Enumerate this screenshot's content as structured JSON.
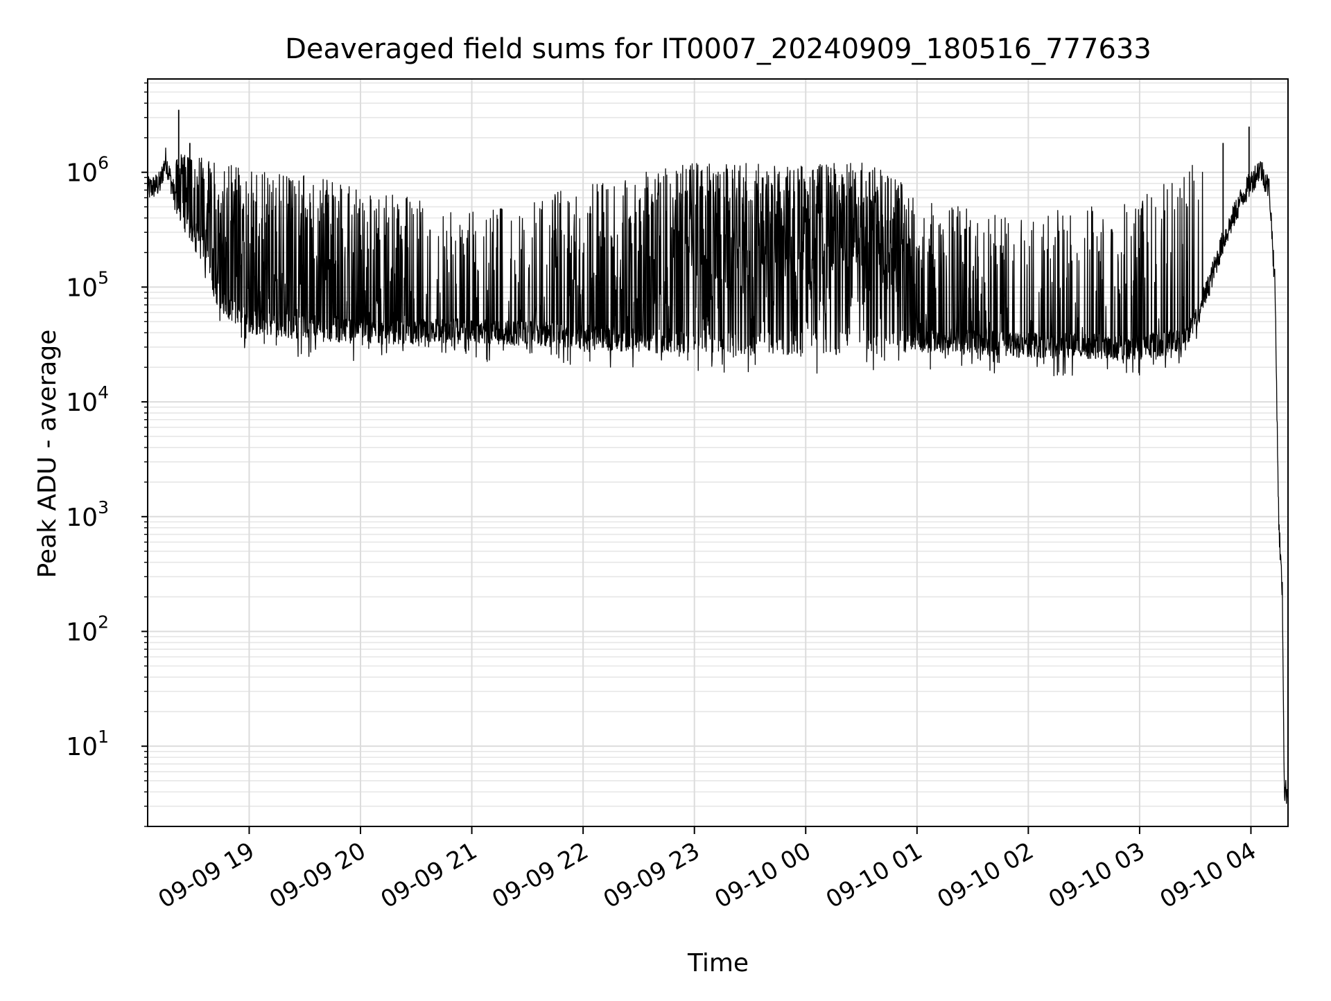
{
  "chart_data": {
    "type": "line",
    "title": "Deaveraged field sums for IT0007_20240909_180516_777633",
    "xlabel": "Time",
    "ylabel": "Peak ADU - average",
    "yscale": "log",
    "ylim": [
      2,
      6500000
    ],
    "xlim": [
      "2024-09-09 18:05:16",
      "2024-09-10 04:20:00"
    ],
    "grid": true,
    "y_ticks": [
      {
        "value": 10,
        "base": "10",
        "exp": "1"
      },
      {
        "value": 100,
        "base": "10",
        "exp": "2"
      },
      {
        "value": 1000,
        "base": "10",
        "exp": "3"
      },
      {
        "value": 10000,
        "base": "10",
        "exp": "4"
      },
      {
        "value": 100000,
        "base": "10",
        "exp": "5"
      },
      {
        "value": 1000000,
        "base": "10",
        "exp": "6"
      }
    ],
    "x_ticks": [
      {
        "time": "2024-09-09 19:00",
        "label": "09-09 19"
      },
      {
        "time": "2024-09-09 20:00",
        "label": "09-09 20"
      },
      {
        "time": "2024-09-09 21:00",
        "label": "09-09 21"
      },
      {
        "time": "2024-09-09 22:00",
        "label": "09-09 22"
      },
      {
        "time": "2024-09-09 23:00",
        "label": "09-09 23"
      },
      {
        "time": "2024-09-10 00:00",
        "label": "09-10 00"
      },
      {
        "time": "2024-09-10 01:00",
        "label": "09-10 01"
      },
      {
        "time": "2024-09-10 02:00",
        "label": "09-10 02"
      },
      {
        "time": "2024-09-10 03:00",
        "label": "09-10 03"
      },
      {
        "time": "2024-09-10 04:00",
        "label": "09-10 04"
      }
    ],
    "series": [
      {
        "color": "#000000",
        "baseline": [
          {
            "time": "2024-09-09 18:05",
            "value": 700000
          },
          {
            "time": "2024-09-09 18:12",
            "value": 800000
          },
          {
            "time": "2024-09-09 18:15",
            "value": 1300000
          },
          {
            "time": "2024-09-09 18:20",
            "value": 600000
          },
          {
            "time": "2024-09-09 18:25",
            "value": 350000
          },
          {
            "time": "2024-09-09 18:35",
            "value": 200000
          },
          {
            "time": "2024-09-09 18:45",
            "value": 70000
          },
          {
            "time": "2024-09-09 19:00",
            "value": 50000
          },
          {
            "time": "2024-09-09 20:00",
            "value": 40000
          },
          {
            "time": "2024-09-09 21:00",
            "value": 42000
          },
          {
            "time": "2024-09-09 22:00",
            "value": 37000
          },
          {
            "time": "2024-09-09 23:00",
            "value": 33000
          },
          {
            "time": "2024-09-10 00:00",
            "value": 32000
          },
          {
            "time": "2024-09-10 01:00",
            "value": 35000
          },
          {
            "time": "2024-09-10 02:00",
            "value": 31000
          },
          {
            "time": "2024-09-10 03:00",
            "value": 30000
          },
          {
            "time": "2024-09-10 03:25",
            "value": 35000
          },
          {
            "time": "2024-09-10 03:35",
            "value": 80000
          },
          {
            "time": "2024-09-10 03:45",
            "value": 250000
          },
          {
            "time": "2024-09-10 03:55",
            "value": 600000
          },
          {
            "time": "2024-09-10 04:05",
            "value": 1100000
          },
          {
            "time": "2024-09-10 04:10",
            "value": 700000
          },
          {
            "time": "2024-09-10 04:13",
            "value": 100000
          },
          {
            "time": "2024-09-10 04:15",
            "value": 900
          },
          {
            "time": "2024-09-10 04:17",
            "value": 200
          },
          {
            "time": "2024-09-10 04:18",
            "value": 4
          },
          {
            "time": "2024-09-10 04:20",
            "value": 4
          }
        ],
        "spike_peak_envelope": [
          {
            "time": "2024-09-09 18:20",
            "value": 1500000
          },
          {
            "time": "2024-09-09 19:00",
            "value": 1100000
          },
          {
            "time": "2024-09-09 20:00",
            "value": 800000
          },
          {
            "time": "2024-09-09 21:00",
            "value": 450000
          },
          {
            "time": "2024-09-09 22:00",
            "value": 800000
          },
          {
            "time": "2024-09-09 23:00",
            "value": 1200000
          },
          {
            "time": "2024-09-10 00:00",
            "value": 1200000
          },
          {
            "time": "2024-09-10 00:45",
            "value": 1250000
          },
          {
            "time": "2024-09-10 01:00",
            "value": 550000
          },
          {
            "time": "2024-09-10 02:00",
            "value": 450000
          },
          {
            "time": "2024-09-10 03:00",
            "value": 600000
          },
          {
            "time": "2024-09-10 03:40",
            "value": 1500000
          }
        ],
        "spike_density": [
          {
            "time": "2024-09-09 18:20",
            "value": 0.6
          },
          {
            "time": "2024-09-09 20:00",
            "value": 0.45
          },
          {
            "time": "2024-09-09 21:00",
            "value": 0.2
          },
          {
            "time": "2024-09-09 22:00",
            "value": 0.3
          },
          {
            "time": "2024-09-09 23:00",
            "value": 0.6
          },
          {
            "time": "2024-09-10 00:00",
            "value": 0.85
          },
          {
            "time": "2024-09-10 00:45",
            "value": 0.8
          },
          {
            "time": "2024-09-10 01:00",
            "value": 0.45
          },
          {
            "time": "2024-09-10 02:00",
            "value": 0.2
          },
          {
            "time": "2024-09-10 03:00",
            "value": 0.3
          },
          {
            "time": "2024-09-10 03:35",
            "value": 0.15
          }
        ],
        "notable_peaks": [
          {
            "time": "2024-09-09 18:22",
            "value": 3500000
          },
          {
            "time": "2024-09-09 18:28",
            "value": 1800000
          },
          {
            "time": "2024-09-10 03:45",
            "value": 1800000
          },
          {
            "time": "2024-09-10 03:59",
            "value": 2500000
          }
        ]
      }
    ]
  }
}
